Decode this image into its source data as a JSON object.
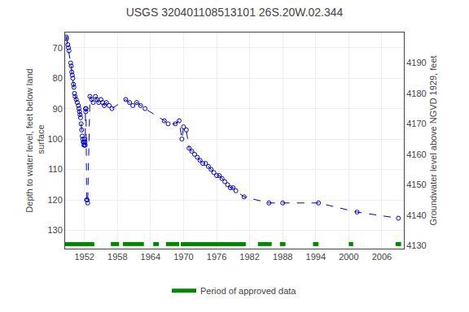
{
  "chart_data": {
    "type": "line",
    "title": "USGS 320401108513101 26S.20W.02.344",
    "ylabel": "Depth to water level, feet below land\n surface",
    "y2label": "Groundwater level above NGVD 1929, feet",
    "xlim": [
      1948.5,
      2010
    ],
    "xticks": [
      1952,
      1958,
      1964,
      1970,
      1976,
      1982,
      1988,
      1994,
      2000,
      2006
    ],
    "ylim": [
      136,
      65
    ],
    "yticks": [
      70,
      80,
      90,
      100,
      110,
      120,
      130
    ],
    "y2lim": [
      4129,
      4200
    ],
    "y2ticks": [
      4130,
      4140,
      4150,
      4160,
      4170,
      4180,
      4190
    ],
    "grid": true,
    "legend": "bottom",
    "series": [
      {
        "type": "line",
        "color": "#0000CC",
        "marker": "circle-open",
        "line_style": "dash",
        "x": [
          1948.7,
          1948.75,
          1949.0,
          1949.1,
          1949.2,
          1949.5,
          1949.6,
          1949.7,
          1949.8,
          1949.9,
          1950.0,
          1950.1,
          1950.2,
          1950.3,
          1950.5,
          1950.7,
          1950.9,
          1951.0,
          1951.1,
          1951.2,
          1951.3,
          1951.4,
          1951.5,
          1951.6,
          1951.7,
          1951.8,
          1951.85,
          1951.9,
          1952.0,
          1952.05,
          1952.1,
          1952.15,
          1952.2,
          1952.25,
          1952.3,
          1952.4,
          1952.5,
          1952.6,
          1953.0,
          1953.3,
          1953.6,
          1954.0,
          1954.3,
          1954.6,
          1955.0,
          1955.3,
          1955.6,
          1956.0,
          1956.5,
          1957.0,
          1959.5,
          1960.2,
          1960.8,
          1961.5,
          1962.2,
          1963.0,
          1966.5,
          1967.2,
          1968.5,
          1969.2,
          1969.7,
          1970.0,
          1970.5,
          1971.0,
          1971.5,
          1972.0,
          1972.5,
          1973.0,
          1973.5,
          1974.0,
          1974.5,
          1975.0,
          1975.5,
          1976.0,
          1976.5,
          1977.0,
          1977.5,
          1978.0,
          1978.5,
          1979.0,
          1979.5,
          1981.0,
          1985.5,
          1988.0,
          1994.5,
          2001.5,
          2009.0
        ],
        "values": [
          66.5,
          67,
          69,
          70,
          71,
          75,
          76,
          78,
          79,
          80,
          82,
          83,
          85,
          86,
          87,
          88,
          89,
          90,
          91,
          92,
          93,
          95,
          97,
          99,
          100,
          101,
          101,
          102,
          102,
          100,
          101,
          102,
          90,
          91,
          90,
          120,
          120,
          121,
          86,
          87,
          88,
          86,
          87,
          88,
          87,
          88,
          89,
          88,
          89,
          90,
          87,
          88,
          89,
          88,
          89,
          90,
          94,
          95,
          95,
          94,
          100,
          96,
          97,
          103,
          104,
          105,
          106,
          107,
          108,
          108,
          109,
          110,
          111,
          112,
          112,
          113,
          114,
          115,
          116,
          116,
          117,
          119,
          121,
          121,
          121,
          124,
          126
        ]
      },
      {
        "type": "periods",
        "name": "Period of approved data",
        "color": "#008800",
        "y": 134.5,
        "periods": [
          [
            1948.5,
            1953.8
          ],
          [
            1956.8,
            1958.3
          ],
          [
            1959.0,
            1962.8
          ],
          [
            1964.5,
            1965.5
          ],
          [
            1966.8,
            1969.2
          ],
          [
            1969.5,
            1981.3
          ],
          [
            1983.5,
            1986.0
          ],
          [
            1987.5,
            1988.5
          ],
          [
            1993.5,
            1994.5
          ],
          [
            2000.0,
            2000.8
          ],
          [
            2008.5,
            2009.5
          ]
        ]
      }
    ]
  }
}
